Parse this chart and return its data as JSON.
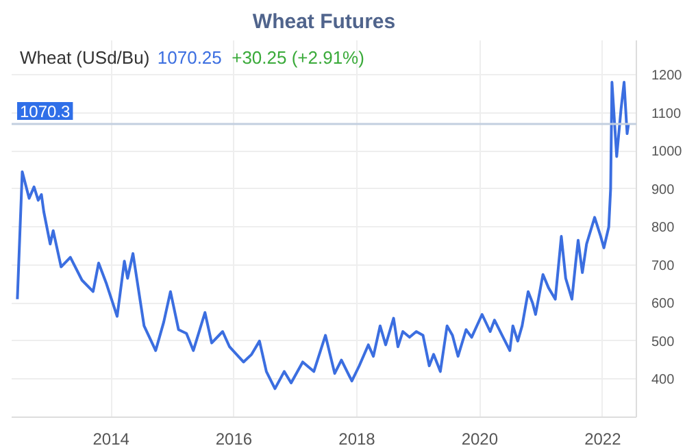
{
  "chart_data": {
    "type": "line",
    "title": "Wheat Futures",
    "grid": true,
    "marker": "none",
    "line_style": "solid",
    "annotations": [
      "Wheat (USd/Bu)",
      "1070.25",
      "+30.25 (+2.91%)"
    ],
    "ref_lines": [
      {
        "axis": "y",
        "value": 1070.25,
        "label": "1070.3",
        "color": "#c3cfe0"
      }
    ],
    "xlim": [
      "2012-05-20",
      "2022-07-20"
    ],
    "xticks": [
      "2014",
      "2016",
      "2018",
      "2020",
      "2022"
    ],
    "ylim": [
      300,
      1290
    ],
    "yticks": [
      400,
      500,
      600,
      700,
      800,
      900,
      1000,
      1100,
      1200
    ],
    "series": [
      {
        "color": "#3b6ee0",
        "x": [
          "2012-06-23",
          "2012-07-22",
          "2012-09-01",
          "2012-09-30",
          "2012-10-25",
          "2012-11-13",
          "2012-11-27",
          "2013-01-04",
          "2013-01-22",
          "2013-03-10",
          "2013-05-04",
          "2013-07-12",
          "2013-09-16",
          "2013-10-19",
          "2013-12-05",
          "2014-02-06",
          "2014-03-21",
          "2014-04-09",
          "2014-05-11",
          "2014-07-16",
          "2014-09-23",
          "2014-11-10",
          "2014-12-20",
          "2015-02-06",
          "2015-03-25",
          "2015-05-05",
          "2015-07-13",
          "2015-08-22",
          "2015-10-26",
          "2015-12-06",
          "2016-02-27",
          "2016-04-15",
          "2016-06-01",
          "2016-07-12",
          "2016-09-01",
          "2016-10-26",
          "2016-12-06",
          "2017-02-13",
          "2017-04-20",
          "2017-06-28",
          "2017-08-22",
          "2017-10-01",
          "2017-12-02",
          "2018-01-15",
          "2018-03-10",
          "2018-04-09",
          "2018-05-19",
          "2018-06-21",
          "2018-08-07",
          "2018-09-02",
          "2018-10-01",
          "2018-11-10",
          "2018-12-20",
          "2019-01-29",
          "2019-03-07",
          "2019-04-02",
          "2019-05-12",
          "2019-06-21",
          "2019-07-23",
          "2019-08-25",
          "2019-10-12",
          "2019-11-14",
          "2020-01-15",
          "2020-03-03",
          "2020-03-29",
          "2020-05-19",
          "2020-06-28",
          "2020-07-16",
          "2020-08-14",
          "2020-09-09",
          "2020-09-23",
          "2020-10-15",
          "2020-11-10",
          "2020-11-28",
          "2021-01-11",
          "2021-02-13",
          "2021-03-25",
          "2021-04-30",
          "2021-05-26",
          "2021-07-02",
          "2021-07-24",
          "2021-08-08",
          "2021-09-02",
          "2021-09-27",
          "2021-11-14",
          "2021-12-20",
          "2022-01-08",
          "2022-02-06",
          "2022-02-17",
          "2022-02-25",
          "2022-03-25",
          "2022-04-20",
          "2022-05-08",
          "2022-05-26",
          "2022-06-03"
        ],
        "values": [
          610,
          945,
          875,
          905,
          870,
          885,
          840,
          755,
          790,
          695,
          720,
          660,
          630,
          705,
          650,
          565,
          710,
          665,
          730,
          540,
          475,
          550,
          630,
          530,
          520,
          475,
          575,
          495,
          525,
          485,
          445,
          465,
          500,
          420,
          375,
          420,
          390,
          445,
          420,
          515,
          415,
          450,
          395,
          435,
          490,
          460,
          540,
          490,
          560,
          485,
          525,
          510,
          525,
          515,
          435,
          465,
          420,
          540,
          515,
          460,
          530,
          510,
          570,
          525,
          555,
          510,
          475,
          540,
          500,
          540,
          575,
          630,
          600,
          570,
          675,
          640,
          610,
          775,
          665,
          610,
          705,
          765,
          680,
          755,
          825,
          775,
          745,
          800,
          900,
          1180,
          985,
          1110,
          1180,
          1045,
          1070
        ]
      }
    ]
  }
}
